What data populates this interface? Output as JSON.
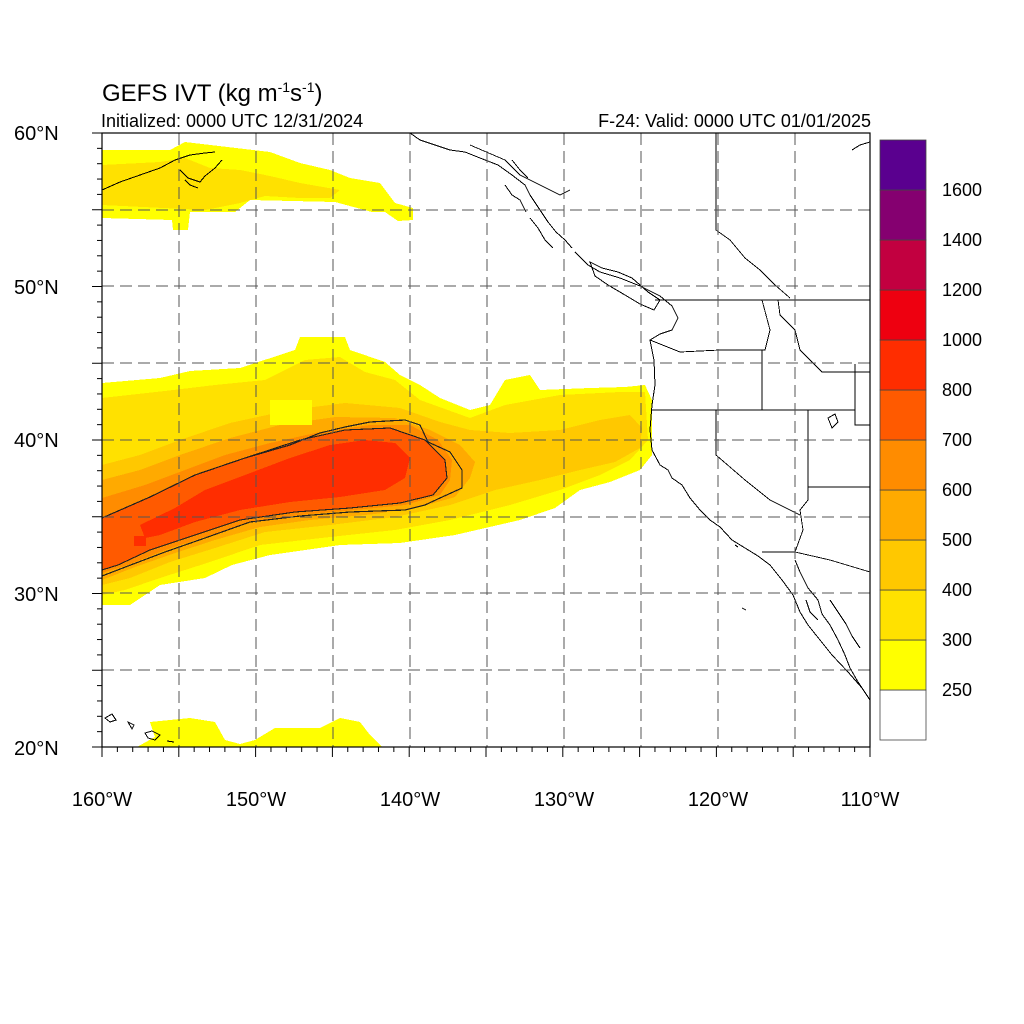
{
  "title": {
    "prefix": "GEFS IVT (kg m",
    "sup1": "-1",
    "mid": "s",
    "sup2": "-1",
    "suffix": ")"
  },
  "init_label": "Initialized: 0000 UTC 12/31/2024",
  "valid_label": "F-24: Valid: 0000 UTC 01/01/2025",
  "axes": {
    "lon_ticks": [
      "160°W",
      "150°W",
      "140°W",
      "130°W",
      "120°W",
      "110°W"
    ],
    "lat_ticks": [
      "60°N",
      "50°N",
      "40°N",
      "30°N",
      "20°N"
    ],
    "lon_range": [
      -160,
      -110
    ],
    "lat_range": [
      20,
      60
    ],
    "grid": true
  },
  "colorbar": {
    "labels": [
      "250",
      "300",
      "400",
      "500",
      "600",
      "700",
      "800",
      "1000",
      "1200",
      "1400",
      "1600"
    ],
    "colors": [
      "#ffffff",
      "#ffff00",
      "#ffe100",
      "#ffc800",
      "#ffaa00",
      "#ff8c00",
      "#ff5a00",
      "#ff2d00",
      "#ee0010",
      "#c20040",
      "#850070",
      "#5a008f"
    ],
    "placement": "right"
  },
  "map_features": {
    "projection": "cylindrical equidistant",
    "coastlines": true,
    "state_borders": true,
    "contour_line_ivt": 700
  }
}
